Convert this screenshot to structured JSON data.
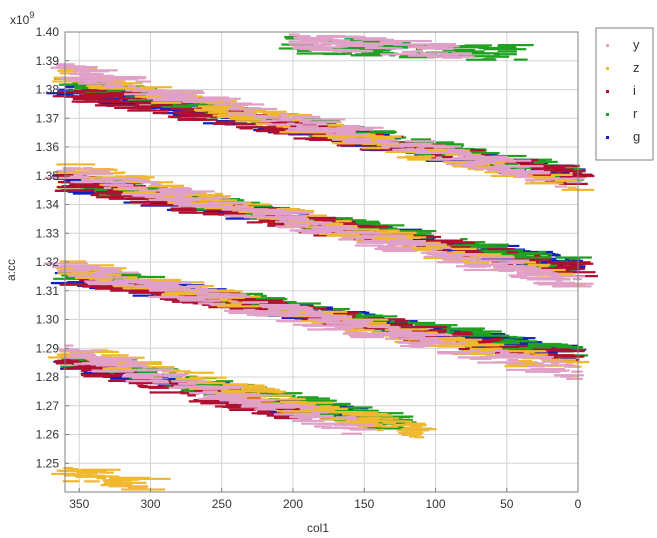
{
  "chart_data": {
    "type": "scatter",
    "xlabel": "col1",
    "ylabel": "a:cc",
    "y_multiplier_label": "x10",
    "y_multiplier_exponent": "9",
    "xlim": [
      360,
      0
    ],
    "ylim": [
      1.24,
      1.4
    ],
    "x_reversed": true,
    "grid": true,
    "legend_placement": "right",
    "x_ticks": [
      {
        "value": 350,
        "label": "350"
      },
      {
        "value": 300,
        "label": "300"
      },
      {
        "value": 250,
        "label": "250"
      },
      {
        "value": 200,
        "label": "200"
      },
      {
        "value": 150,
        "label": "150"
      },
      {
        "value": 100,
        "label": "100"
      },
      {
        "value": 50,
        "label": "50"
      },
      {
        "value": 0,
        "label": "0"
      }
    ],
    "y_ticks": [
      {
        "value": 1.25,
        "label": "1.25"
      },
      {
        "value": 1.26,
        "label": "1.26"
      },
      {
        "value": 1.27,
        "label": "1.27"
      },
      {
        "value": 1.28,
        "label": "1.28"
      },
      {
        "value": 1.29,
        "label": "1.29"
      },
      {
        "value": 1.3,
        "label": "1.30"
      },
      {
        "value": 1.31,
        "label": "1.31"
      },
      {
        "value": 1.32,
        "label": "1.32"
      },
      {
        "value": 1.33,
        "label": "1.33"
      },
      {
        "value": 1.34,
        "label": "1.34"
      },
      {
        "value": 1.35,
        "label": "1.35"
      },
      {
        "value": 1.36,
        "label": "1.36"
      },
      {
        "value": 1.37,
        "label": "1.37"
      },
      {
        "value": 1.38,
        "label": "1.38"
      },
      {
        "value": 1.39,
        "label": "1.39"
      },
      {
        "value": 1.4,
        "label": "1.40"
      }
    ],
    "series": [
      {
        "name": "y",
        "color": "#e0a0c8",
        "bands": [
          {
            "x": [
              360,
              0
            ],
            "y": [
              1.387,
              1.348
            ]
          },
          {
            "x": [
              360,
              0
            ],
            "y": [
              1.352,
              1.313
            ]
          },
          {
            "x": [
              360,
              0
            ],
            "y": [
              1.318,
              1.282
            ]
          },
          {
            "x": [
              360,
              150
            ],
            "y": [
              1.289,
              1.262
            ]
          },
          {
            "x": [
              200,
              80
            ],
            "y": [
              1.397,
              1.394
            ]
          }
        ]
      },
      {
        "name": "z",
        "color": "#f0b830",
        "bands": [
          {
            "x": [
              360,
              0
            ],
            "y": [
              1.386,
              1.347
            ]
          },
          {
            "x": [
              360,
              0
            ],
            "y": [
              1.353,
              1.314
            ]
          },
          {
            "x": [
              360,
              0
            ],
            "y": [
              1.319,
              1.283
            ]
          },
          {
            "x": [
              360,
              110
            ],
            "y": [
              1.29,
              1.261
            ]
          },
          {
            "x": [
              360,
              300
            ],
            "y": [
              1.247,
              1.243
            ]
          }
        ]
      },
      {
        "name": "i",
        "color": "#b01030",
        "bands": [
          {
            "x": [
              360,
              0
            ],
            "y": [
              1.38,
              1.35
            ]
          },
          {
            "x": [
              360,
              0
            ],
            "y": [
              1.348,
              1.318
            ]
          },
          {
            "x": [
              360,
              0
            ],
            "y": [
              1.316,
              1.287
            ]
          },
          {
            "x": [
              360,
              190
            ],
            "y": [
              1.286,
              1.266
            ]
          }
        ]
      },
      {
        "name": "r",
        "color": "#20a020",
        "bands": [
          {
            "x": [
              360,
              0
            ],
            "y": [
              1.383,
              1.351
            ]
          },
          {
            "x": [
              360,
              0
            ],
            "y": [
              1.349,
              1.319
            ]
          },
          {
            "x": [
              360,
              0
            ],
            "y": [
              1.317,
              1.288
            ]
          },
          {
            "x": [
              360,
              110
            ],
            "y": [
              1.287,
              1.263
            ]
          },
          {
            "x": [
              200,
              40
            ],
            "y": [
              1.396,
              1.393
            ]
          }
        ]
      },
      {
        "name": "g",
        "color": "#1020c0",
        "bands": [
          {
            "x": [
              360,
              0
            ],
            "y": [
              1.381,
              1.35
            ]
          },
          {
            "x": [
              360,
              0
            ],
            "y": [
              1.348,
              1.319
            ]
          },
          {
            "x": [
              360,
              0
            ],
            "y": [
              1.316,
              1.288
            ]
          },
          {
            "x": [
              360,
              140
            ],
            "y": [
              1.286,
              1.265
            ]
          }
        ]
      }
    ]
  }
}
